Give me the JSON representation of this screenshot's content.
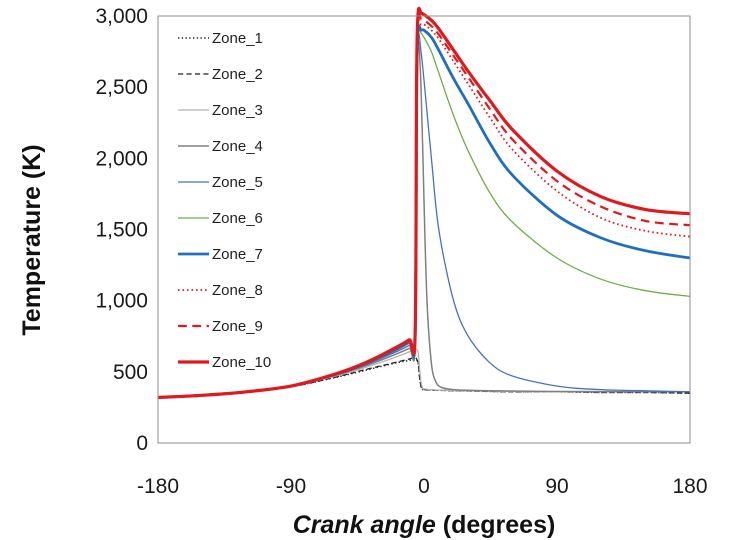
{
  "chart_data": {
    "type": "line",
    "title": "",
    "xlabel_italic": "Crank angle",
    "xlabel_rest": " (degrees)",
    "ylabel": "Temperature (K)",
    "xlim": [
      -180,
      180
    ],
    "ylim": [
      0,
      3000
    ],
    "xticks": [
      -180,
      -90,
      0,
      90,
      180
    ],
    "xtick_labels": [
      "-180",
      "-90",
      "0",
      "90",
      "180"
    ],
    "yticks": [
      0,
      500,
      1000,
      1500,
      2000,
      2500,
      3000
    ],
    "ytick_labels": [
      "0",
      "500",
      "1,000",
      "1,500",
      "2,000",
      "2,500",
      "3,000"
    ],
    "grid": false,
    "legend_position": "top-left",
    "series": [
      {
        "name": "Zone_1",
        "color": "#222222",
        "dash": "dotted",
        "width": 1.5,
        "x": [
          -180,
          -150,
          -120,
          -90,
          -60,
          -40,
          -20,
          -10,
          -6,
          -4,
          -3,
          -2,
          -1,
          0,
          10,
          30,
          60,
          90,
          120,
          150,
          180
        ],
        "y": [
          320,
          335,
          360,
          395,
          460,
          510,
          560,
          580,
          590,
          560,
          460,
          400,
          380,
          375,
          370,
          365,
          360,
          360,
          355,
          355,
          350
        ]
      },
      {
        "name": "Zone_2",
        "color": "#222222",
        "dash": "dashed",
        "width": 1.3,
        "x": [
          -180,
          -150,
          -120,
          -90,
          -60,
          -40,
          -20,
          -10,
          -6,
          -4,
          -3,
          -2,
          -1,
          0,
          10,
          30,
          60,
          90,
          120,
          150,
          180
        ],
        "y": [
          320,
          335,
          360,
          395,
          462,
          515,
          565,
          590,
          600,
          560,
          460,
          400,
          380,
          375,
          370,
          365,
          360,
          360,
          355,
          355,
          350
        ]
      },
      {
        "name": "Zone_3",
        "color": "#b4b4b4",
        "dash": "solid",
        "width": 1.3,
        "x": [
          -180,
          -150,
          -120,
          -90,
          -60,
          -40,
          -20,
          -10,
          -6,
          -4,
          -3,
          -2,
          -1,
          0,
          10,
          30,
          60,
          90,
          120,
          150,
          180
        ],
        "y": [
          320,
          335,
          360,
          398,
          470,
          530,
          600,
          640,
          660,
          640,
          520,
          430,
          390,
          380,
          372,
          367,
          362,
          360,
          360,
          360,
          360
        ]
      },
      {
        "name": "Zone_4",
        "color": "#7f7f7f",
        "dash": "solid",
        "width": 1.5,
        "x": [
          -180,
          -150,
          -120,
          -90,
          -60,
          -40,
          -20,
          -10,
          -6,
          -5,
          -4,
          -2,
          0,
          2,
          5,
          8,
          12,
          20,
          30,
          60,
          90,
          180
        ],
        "y": [
          320,
          335,
          360,
          400,
          475,
          540,
          620,
          665,
          690,
          2200,
          2820,
          2500,
          1700,
          1000,
          560,
          430,
          390,
          375,
          370,
          365,
          362,
          360
        ]
      },
      {
        "name": "Zone_5",
        "color": "#4472c4",
        "dash": "solid",
        "width": 1.3,
        "x": [
          -180,
          -150,
          -120,
          -90,
          -60,
          -40,
          -20,
          -10,
          -6,
          -5,
          -4,
          -2,
          0,
          5,
          10,
          20,
          30,
          45,
          60,
          90,
          120,
          180
        ],
        "y": [
          320,
          335,
          360,
          400,
          478,
          548,
          635,
          685,
          710,
          2300,
          2860,
          2750,
          2550,
          2000,
          1500,
          1000,
          750,
          560,
          470,
          400,
          375,
          360
        ]
      },
      {
        "name": "Zone_6",
        "color": "#70ad47",
        "dash": "solid",
        "width": 1.3,
        "x": [
          -180,
          -150,
          -120,
          -90,
          -60,
          -40,
          -20,
          -10,
          -6,
          -5,
          -4,
          -2,
          0,
          5,
          10,
          20,
          30,
          45,
          60,
          90,
          120,
          150,
          180
        ],
        "y": [
          320,
          335,
          360,
          400,
          480,
          552,
          645,
          700,
          725,
          2400,
          2880,
          2880,
          2850,
          2750,
          2600,
          2300,
          2050,
          1750,
          1550,
          1300,
          1150,
          1070,
          1030
        ]
      },
      {
        "name": "Zone_7",
        "color": "#1f6fbf",
        "dash": "solid",
        "width": 2.8,
        "x": [
          -180,
          -150,
          -120,
          -90,
          -60,
          -40,
          -20,
          -10,
          -6,
          -5,
          -4,
          -2,
          0,
          5,
          10,
          20,
          30,
          45,
          60,
          90,
          120,
          150,
          180
        ],
        "y": [
          320,
          335,
          360,
          400,
          482,
          556,
          652,
          710,
          735,
          2450,
          2900,
          2900,
          2900,
          2850,
          2760,
          2560,
          2380,
          2100,
          1880,
          1600,
          1440,
          1350,
          1300
        ]
      },
      {
        "name": "Zone_8",
        "color": "#e0191c",
        "dash": "dotted",
        "width": 1.8,
        "x": [
          -180,
          -150,
          -120,
          -90,
          -60,
          -40,
          -20,
          -10,
          -6,
          -5,
          -4,
          -2,
          0,
          5,
          10,
          20,
          30,
          45,
          60,
          90,
          120,
          150,
          180
        ],
        "y": [
          320,
          335,
          360,
          400,
          483,
          558,
          656,
          715,
          742,
          2480,
          2940,
          2940,
          2940,
          2900,
          2840,
          2680,
          2520,
          2280,
          2060,
          1770,
          1580,
          1490,
          1450
        ]
      },
      {
        "name": "Zone_9",
        "color": "#e0191c",
        "dash": "dashed",
        "width": 2.2,
        "x": [
          -180,
          -150,
          -120,
          -90,
          -60,
          -40,
          -20,
          -10,
          -6,
          -5,
          -4,
          -2,
          0,
          5,
          10,
          20,
          30,
          45,
          60,
          90,
          120,
          150,
          180
        ],
        "y": [
          320,
          335,
          360,
          400,
          484,
          560,
          660,
          720,
          750,
          2500,
          2980,
          2980,
          2970,
          2930,
          2870,
          2720,
          2570,
          2340,
          2130,
          1840,
          1660,
          1560,
          1530
        ]
      },
      {
        "name": "Zone_10",
        "color": "#e0191c",
        "dash": "solid",
        "width": 3.2,
        "x": [
          -180,
          -150,
          -120,
          -90,
          -60,
          -40,
          -20,
          -10,
          -6,
          -5,
          -4,
          -2,
          0,
          5,
          10,
          20,
          30,
          45,
          60,
          90,
          120,
          150,
          180
        ],
        "y": [
          320,
          335,
          360,
          400,
          485,
          562,
          665,
          725,
          760,
          2550,
          3020,
          3020,
          3010,
          2970,
          2910,
          2760,
          2610,
          2400,
          2200,
          1910,
          1730,
          1640,
          1610
        ]
      }
    ]
  }
}
